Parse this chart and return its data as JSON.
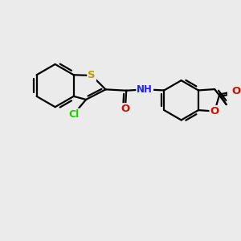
{
  "background_color": "#ebebeb",
  "atom_colors": {
    "C": "#000000",
    "H": "#7ab0c8",
    "N": "#2020ee",
    "O": "#cc1100",
    "S": "#b8a000",
    "Cl": "#22cc00"
  },
  "bond_color": "#000000",
  "bond_width": 1.6,
  "font_size": 8.5,
  "figsize": [
    3.0,
    3.0
  ],
  "dpi": 100,
  "xlim": [
    0,
    10
  ],
  "ylim": [
    0,
    10
  ]
}
